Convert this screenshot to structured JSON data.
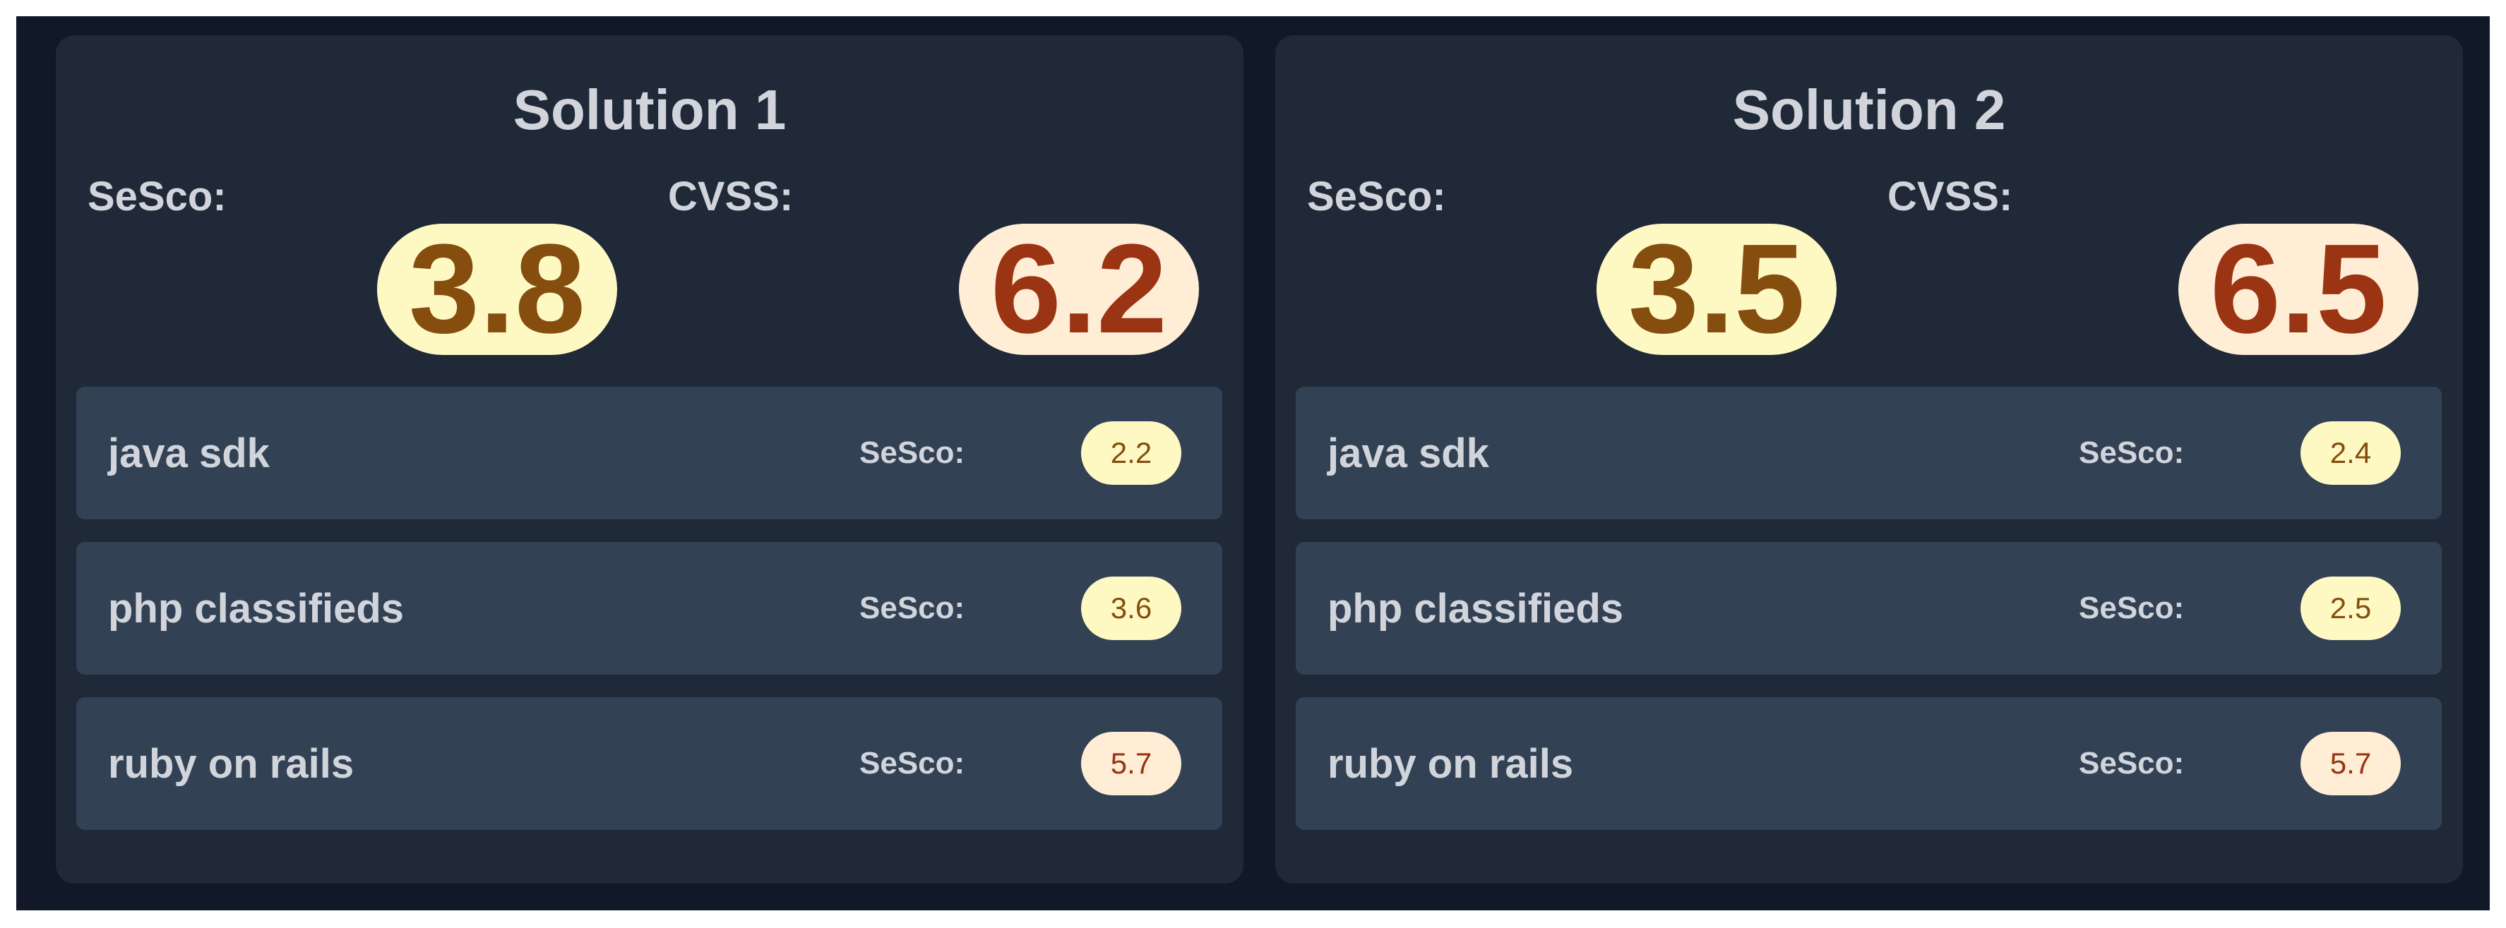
{
  "colors": {
    "background": "#111827",
    "card": "#1f2937",
    "row": "#334155",
    "text": "#d1d5db",
    "yellow_bg": "#fef9c3",
    "yellow_text": "#854d0e",
    "orange_bg": "#ffedd5",
    "orange_text": "#9a3412"
  },
  "solutions": [
    {
      "title": "Solution 1",
      "sesco_label": "SeSco:",
      "cvss_label": "CVSS:",
      "sesco": "3.8",
      "cvss": "6.2",
      "items": [
        {
          "name": "java sdk",
          "label": "SeSco:",
          "score": "2.2",
          "level": "yellow"
        },
        {
          "name": "php classifieds",
          "label": "SeSco:",
          "score": "3.6",
          "level": "yellow"
        },
        {
          "name": "ruby on rails",
          "label": "SeSco:",
          "score": "5.7",
          "level": "orange"
        }
      ]
    },
    {
      "title": "Solution 2",
      "sesco_label": "SeSco:",
      "cvss_label": "CVSS:",
      "sesco": "3.5",
      "cvss": "6.5",
      "items": [
        {
          "name": "java sdk",
          "label": "SeSco:",
          "score": "2.4",
          "level": "yellow"
        },
        {
          "name": "php classifieds",
          "label": "SeSco:",
          "score": "2.5",
          "level": "yellow"
        },
        {
          "name": "ruby on rails",
          "label": "SeSco:",
          "score": "5.7",
          "level": "orange"
        }
      ]
    }
  ]
}
